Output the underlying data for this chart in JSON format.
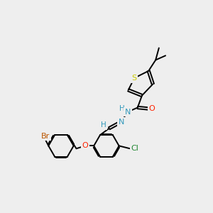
{
  "bg_color": "#eeeeee",
  "atom_colors": {
    "S": "#cccc00",
    "O": "#ff2200",
    "N": "#3399bb",
    "Cl": "#228833",
    "Br": "#bb5500",
    "C": "#000000",
    "H": "#3399bb"
  },
  "figsize": [
    3.0,
    3.0
  ],
  "dpi": 100
}
